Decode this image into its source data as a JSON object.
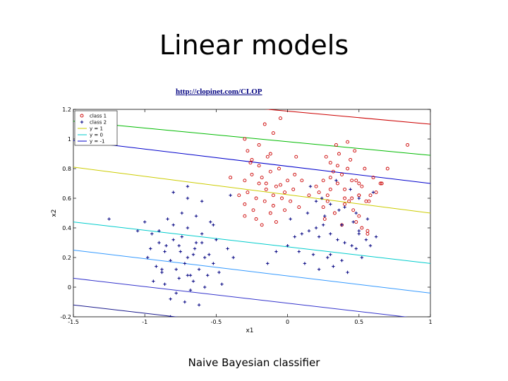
{
  "slide": {
    "title": "Linear models",
    "url": "http://clopinet.com/CLOP",
    "caption": "Naive Bayesian classifier"
  },
  "chart_data": {
    "type": "scatter",
    "xlabel": "x1",
    "ylabel": "x2",
    "xlim": [
      -1.5,
      1
    ],
    "ylim": [
      -0.2,
      1.2
    ],
    "xticks": [
      "-1.5",
      "-1",
      "-0.5",
      "0",
      "0.5",
      "1"
    ],
    "yticks": [
      "-0.2",
      "0",
      "0.2",
      "0.4",
      "0.6",
      "0.8",
      "1",
      "1.2"
    ],
    "legend_position": "top-left",
    "grid": false,
    "legend": [
      {
        "label": "class 1",
        "kind": "marker-circle",
        "color": "#cc0000"
      },
      {
        "label": "class 2",
        "kind": "marker-plus",
        "color": "#000080"
      },
      {
        "label": "y = 1",
        "kind": "line",
        "color": "#cccc00"
      },
      {
        "label": "y = 0",
        "kind": "line",
        "color": "#00cccc"
      },
      {
        "label": "y = -1",
        "kind": "line",
        "color": "#0000cc"
      }
    ],
    "contour_lines": [
      {
        "color": "#cc0000",
        "x": [
          -1.5,
          1
        ],
        "y": [
          1.32,
          1.1
        ]
      },
      {
        "color": "#00bb00",
        "x": [
          -1.5,
          1
        ],
        "y": [
          1.12,
          0.89
        ]
      },
      {
        "color": "#0000cc",
        "x": [
          -1.5,
          1
        ],
        "y": [
          0.99,
          0.7
        ]
      },
      {
        "color": "#cccc00",
        "x": [
          -1.5,
          1
        ],
        "y": [
          0.81,
          0.5
        ]
      },
      {
        "color": "#00cccc",
        "x": [
          -1.5,
          1
        ],
        "y": [
          0.44,
          0.16
        ]
      },
      {
        "color": "#3399ff",
        "x": [
          -1.5,
          1
        ],
        "y": [
          0.25,
          -0.04
        ]
      },
      {
        "color": "#3333cc",
        "x": [
          -1.5,
          1
        ],
        "y": [
          0.06,
          -0.22
        ]
      },
      {
        "color": "#1a1a8c",
        "x": [
          -1.5,
          1
        ],
        "y": [
          -0.12,
          -0.4
        ]
      }
    ],
    "series": [
      {
        "name": "class 1",
        "marker": "circle",
        "color": "#cc0000",
        "x": [
          -0.3,
          -0.25,
          -0.2,
          -0.15,
          -0.1,
          -0.05,
          0.0,
          0.05,
          -0.28,
          -0.22,
          -0.18,
          -0.12,
          -0.08,
          -0.02,
          0.02,
          -0.3,
          -0.24,
          -0.16,
          -0.1,
          -0.04,
          -0.2,
          -0.26,
          -0.14,
          0.04,
          -0.06,
          -0.3,
          -0.22,
          -0.12,
          -0.02,
          0.08,
          -0.18,
          -0.08,
          -0.34,
          -0.28,
          0.1,
          -0.2,
          -0.1,
          -0.3,
          -0.16,
          -0.05,
          -0.25,
          -0.12,
          0.06,
          -0.4,
          0.15,
          -0.15,
          0.2,
          0.25,
          0.3,
          0.35,
          0.4,
          0.45,
          0.5,
          0.55,
          0.22,
          0.28,
          0.32,
          0.38,
          0.42,
          0.48,
          0.52,
          0.58,
          0.25,
          0.33,
          0.4,
          0.46,
          0.5,
          0.3,
          0.36,
          0.44,
          0.54,
          0.6,
          0.26,
          0.38,
          0.48,
          0.56,
          0.34,
          0.42,
          0.62,
          0.3,
          0.45,
          0.52,
          0.28,
          0.4,
          0.5,
          0.35,
          0.47,
          0.57,
          0.65,
          0.7,
          0.84,
          0.66,
          0.27,
          0.5,
          0.43,
          0.56
        ],
        "y": [
          0.72,
          0.76,
          0.7,
          0.66,
          0.62,
          0.69,
          0.72,
          0.76,
          0.64,
          0.6,
          0.74,
          0.78,
          0.68,
          0.64,
          0.58,
          0.56,
          0.52,
          0.58,
          0.55,
          0.6,
          0.82,
          0.84,
          0.88,
          0.66,
          0.8,
          0.48,
          0.46,
          0.5,
          0.52,
          0.54,
          0.42,
          0.44,
          0.62,
          0.92,
          0.72,
          0.96,
          1.04,
          1.0,
          1.1,
          1.14,
          0.86,
          0.9,
          0.88,
          0.74,
          0.62,
          0.7,
          0.68,
          0.72,
          0.74,
          0.7,
          0.66,
          0.6,
          0.62,
          0.58,
          0.64,
          0.58,
          0.78,
          0.76,
          0.8,
          0.72,
          0.68,
          0.62,
          0.54,
          0.5,
          0.56,
          0.52,
          0.48,
          0.84,
          0.9,
          0.86,
          0.8,
          0.74,
          0.46,
          0.42,
          0.44,
          0.38,
          0.96,
          0.98,
          0.64,
          0.66,
          0.72,
          0.4,
          0.62,
          0.6,
          0.7,
          0.82,
          0.92,
          0.58,
          0.7,
          0.8,
          0.96,
          0.7,
          0.88,
          0.62,
          0.58,
          0.36
        ]
      },
      {
        "name": "class 2",
        "marker": "plus",
        "color": "#000080",
        "x": [
          -1.25,
          -1.0,
          -0.95,
          -0.9,
          -0.85,
          -0.8,
          -0.75,
          -0.7,
          -0.65,
          -0.6,
          -0.55,
          -0.98,
          -0.92,
          -0.88,
          -0.82,
          -0.78,
          -0.72,
          -0.68,
          -0.62,
          -0.58,
          -0.52,
          -0.48,
          -0.94,
          -0.86,
          -0.76,
          -0.66,
          -0.56,
          -0.46,
          -0.9,
          -0.8,
          -0.7,
          -0.6,
          -0.5,
          -0.84,
          -0.74,
          -0.64,
          -0.54,
          -0.96,
          -0.86,
          -0.76,
          -0.66,
          -0.78,
          -0.68,
          -0.58,
          -0.82,
          -0.72,
          -0.62,
          -1.05,
          -0.8,
          -0.7,
          -0.42,
          -0.38,
          -0.52,
          -0.6,
          -0.7,
          -0.88,
          -0.74,
          -0.64,
          0.0,
          0.05,
          0.1,
          0.15,
          0.2,
          0.25,
          0.3,
          0.35,
          0.4,
          0.45,
          0.5,
          0.55,
          0.62,
          0.08,
          0.18,
          0.28,
          0.38,
          0.48,
          0.58,
          0.12,
          0.22,
          0.32,
          0.42,
          0.52,
          0.02,
          0.14,
          0.26,
          0.36,
          0.46,
          0.56,
          0.2,
          0.3,
          0.4,
          0.5,
          0.6,
          0.16,
          0.34,
          0.44,
          -0.14,
          -0.08,
          0.24,
          0.48,
          0.22,
          0.3,
          0.38,
          0.5,
          -0.82,
          -0.4,
          -0.7
        ],
        "y": [
          0.46,
          0.44,
          0.36,
          0.3,
          0.28,
          0.32,
          0.24,
          0.2,
          0.26,
          0.3,
          0.22,
          0.2,
          0.14,
          0.1,
          0.18,
          0.12,
          0.16,
          0.08,
          0.12,
          0.2,
          0.16,
          0.1,
          0.04,
          0.02,
          0.06,
          0.04,
          0.08,
          0.02,
          0.38,
          0.42,
          0.4,
          0.36,
          0.32,
          0.46,
          0.5,
          0.48,
          0.44,
          0.26,
          0.24,
          0.28,
          0.22,
          -0.04,
          -0.02,
          0.0,
          -0.08,
          -0.1,
          -0.12,
          0.38,
          0.64,
          0.6,
          0.26,
          0.2,
          0.42,
          0.58,
          0.68,
          0.12,
          0.34,
          0.3,
          0.28,
          0.34,
          0.36,
          0.38,
          0.4,
          0.42,
          0.36,
          0.32,
          0.3,
          0.28,
          0.36,
          0.32,
          0.34,
          0.24,
          0.22,
          0.2,
          0.18,
          0.26,
          0.28,
          0.16,
          0.12,
          0.14,
          0.1,
          0.2,
          0.46,
          0.5,
          0.48,
          0.52,
          0.44,
          0.46,
          0.58,
          0.56,
          0.54,
          0.6,
          0.64,
          0.68,
          0.72,
          0.66,
          0.16,
          0.24,
          0.6,
          0.5,
          0.34,
          0.22,
          0.42,
          0.38,
          -0.2,
          0.62,
          0.08
        ]
      }
    ]
  }
}
